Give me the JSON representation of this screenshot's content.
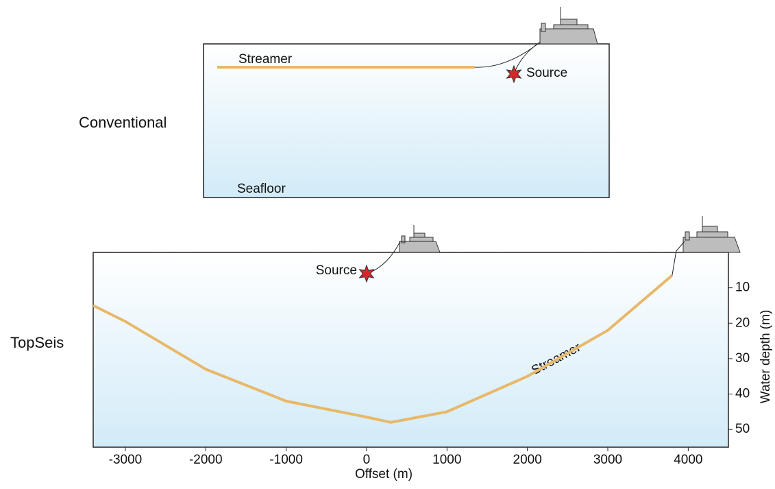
{
  "conventional": {
    "label": "Conventional",
    "streamer_label": "Streamer",
    "source_label": "Source",
    "seafloor_label": "Seafloor"
  },
  "topseis": {
    "label": "TopSeis",
    "streamer_label": "Streamer",
    "source_label": "Source",
    "xlabel": "Offset (m)",
    "ylabel": "Water depth (m)",
    "xlim": [
      -3400,
      4500
    ],
    "ylim": [
      0,
      55
    ],
    "xticks": [
      -3000,
      -2000,
      -1000,
      0,
      1000,
      2000,
      3000,
      4000
    ],
    "yticks": [
      10,
      20,
      30,
      40,
      50
    ],
    "x": [
      -3400,
      -3000,
      -2000,
      -1000,
      0,
      300,
      1000,
      2000,
      3000,
      3800
    ],
    "depth": [
      15,
      19.5,
      33,
      42,
      46.5,
      48,
      45,
      35,
      22,
      6.5
    ],
    "source": {
      "offset": 0,
      "depth": 6
    }
  }
}
